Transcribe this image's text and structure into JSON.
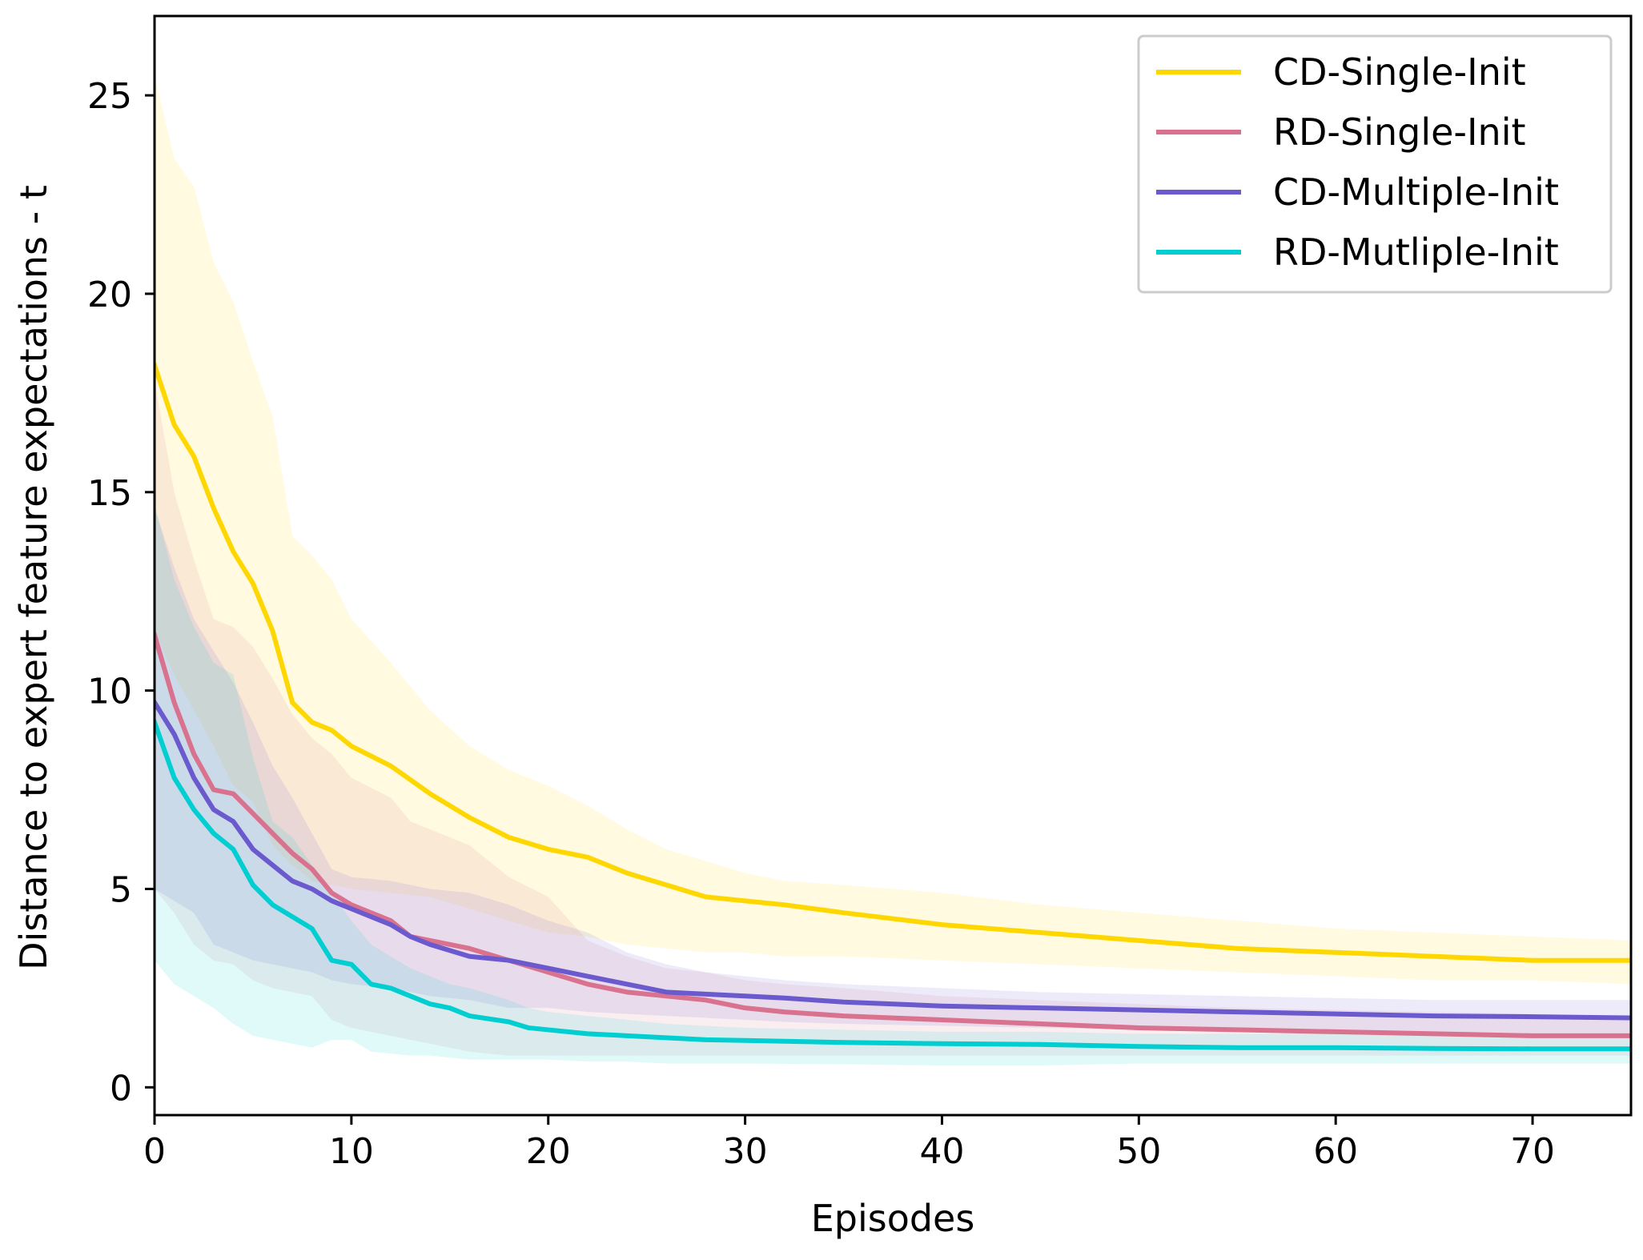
{
  "chart_data": {
    "type": "line",
    "title": "",
    "xlabel": "Episodes",
    "ylabel": "Distance to expert feature expectations - t",
    "xlim": [
      0,
      75
    ],
    "ylim": [
      -0.7,
      27
    ],
    "xticks": [
      0,
      10,
      20,
      30,
      40,
      50,
      60,
      70
    ],
    "yticks": [
      0,
      5,
      10,
      15,
      20,
      25
    ],
    "legend_position": "top-right",
    "grid": false,
    "series": [
      {
        "name": "CD-Single-Init",
        "color": "#FFD700",
        "x": [
          0,
          1,
          2,
          3,
          4,
          5,
          6,
          7,
          8,
          9,
          10,
          12,
          14,
          16,
          18,
          20,
          22,
          24,
          26,
          28,
          30,
          32,
          35,
          40,
          45,
          50,
          55,
          60,
          65,
          70,
          75
        ],
        "values": [
          18.2,
          16.7,
          15.9,
          14.6,
          13.5,
          12.7,
          11.5,
          9.7,
          9.2,
          9.0,
          8.6,
          8.1,
          7.4,
          6.8,
          6.3,
          6.0,
          5.8,
          5.4,
          5.1,
          4.8,
          4.7,
          4.6,
          4.4,
          4.1,
          3.9,
          3.7,
          3.5,
          3.4,
          3.3,
          3.2,
          3.2
        ],
        "upper": [
          25.5,
          23.4,
          22.7,
          20.8,
          19.8,
          18.3,
          16.9,
          13.9,
          13.4,
          12.8,
          11.8,
          10.7,
          9.5,
          8.6,
          8.0,
          7.6,
          7.1,
          6.5,
          6.0,
          5.7,
          5.4,
          5.2,
          5.1,
          4.9,
          4.6,
          4.4,
          4.2,
          4.0,
          3.9,
          3.8,
          3.7
        ],
        "lower": [
          11.5,
          10.4,
          9.5,
          8.6,
          7.6,
          7.2,
          6.1,
          5.6,
          5.2,
          5.1,
          5.0,
          4.9,
          4.8,
          4.5,
          4.2,
          3.9,
          3.8,
          3.6,
          3.5,
          3.4,
          3.4,
          3.3,
          3.3,
          3.2,
          3.1,
          3.0,
          2.9,
          2.8,
          2.7,
          2.7,
          2.6
        ]
      },
      {
        "name": "RD-Single-Init",
        "color": "#D9728F",
        "x": [
          0,
          1,
          2,
          3,
          4,
          5,
          6,
          7,
          8,
          9,
          10,
          12,
          13,
          14,
          16,
          18,
          20,
          22,
          24,
          26,
          28,
          30,
          32,
          35,
          40,
          45,
          50,
          55,
          60,
          65,
          70,
          75
        ],
        "values": [
          11.4,
          9.7,
          8.4,
          7.5,
          7.4,
          6.9,
          6.4,
          5.9,
          5.5,
          4.9,
          4.6,
          4.2,
          3.8,
          3.7,
          3.5,
          3.2,
          2.9,
          2.6,
          2.4,
          2.3,
          2.2,
          2.0,
          1.9,
          1.8,
          1.7,
          1.6,
          1.5,
          1.45,
          1.4,
          1.35,
          1.3,
          1.3
        ],
        "upper": [
          17.8,
          15.0,
          13.3,
          11.8,
          11.6,
          11.1,
          10.3,
          9.4,
          8.8,
          8.4,
          7.8,
          7.3,
          6.7,
          6.5,
          6.1,
          5.3,
          4.8,
          3.7,
          3.3,
          3.0,
          2.9,
          2.7,
          2.6,
          2.5,
          2.3,
          2.2,
          2.1,
          2.0,
          1.95,
          1.9,
          1.85,
          1.8
        ],
        "lower": [
          5.0,
          4.4,
          3.6,
          3.2,
          3.1,
          2.7,
          2.5,
          2.4,
          2.3,
          1.7,
          1.5,
          1.3,
          1.2,
          1.1,
          0.9,
          0.8,
          0.8,
          0.8,
          0.8,
          0.8,
          0.8,
          0.8,
          0.8,
          0.8,
          0.8,
          0.8,
          0.8,
          0.8,
          0.8,
          0.8,
          0.8,
          0.8
        ]
      },
      {
        "name": "CD-Multiple-Init",
        "color": "#6A5ACD",
        "x": [
          0,
          1,
          2,
          3,
          4,
          5,
          6,
          7,
          8,
          9,
          10,
          12,
          13,
          14,
          16,
          18,
          20,
          22,
          24,
          26,
          28,
          30,
          32,
          35,
          40,
          45,
          50,
          55,
          60,
          65,
          70,
          75
        ],
        "values": [
          9.7,
          8.9,
          7.8,
          7.0,
          6.7,
          6.0,
          5.6,
          5.2,
          5.0,
          4.7,
          4.5,
          4.1,
          3.8,
          3.6,
          3.3,
          3.2,
          3.0,
          2.8,
          2.6,
          2.4,
          2.35,
          2.3,
          2.25,
          2.15,
          2.05,
          2.0,
          1.95,
          1.9,
          1.85,
          1.8,
          1.78,
          1.75
        ],
        "upper": [
          14.6,
          13.1,
          11.8,
          11.0,
          10.2,
          9.2,
          8.1,
          7.3,
          6.4,
          5.5,
          5.3,
          5.2,
          5.1,
          5.0,
          4.9,
          4.6,
          4.2,
          3.9,
          3.4,
          3.1,
          2.9,
          2.8,
          2.7,
          2.6,
          2.5,
          2.4,
          2.35,
          2.3,
          2.25,
          2.2,
          2.2,
          2.2
        ],
        "lower": [
          5.0,
          4.7,
          4.4,
          3.6,
          3.4,
          3.2,
          3.1,
          3.0,
          2.9,
          2.7,
          2.6,
          2.5,
          2.4,
          2.3,
          2.2,
          2.0,
          2.0,
          1.9,
          1.85,
          1.8,
          1.75,
          1.7,
          1.65,
          1.6,
          1.55,
          1.5,
          1.45,
          1.4,
          1.35,
          1.3,
          1.3,
          1.3
        ]
      },
      {
        "name": "RD-Mutliple-Init",
        "color": "#00CED1",
        "x": [
          0,
          1,
          2,
          3,
          4,
          5,
          6,
          7,
          8,
          9,
          10,
          11,
          12,
          13,
          14,
          15,
          16,
          18,
          19,
          20,
          22,
          24,
          26,
          28,
          30,
          35,
          40,
          45,
          50,
          55,
          60,
          65,
          70,
          75
        ],
        "values": [
          9.2,
          7.8,
          7.0,
          6.4,
          6.0,
          5.1,
          4.6,
          4.3,
          4.0,
          3.2,
          3.1,
          2.6,
          2.5,
          2.3,
          2.1,
          2.0,
          1.8,
          1.65,
          1.5,
          1.45,
          1.35,
          1.3,
          1.25,
          1.2,
          1.18,
          1.13,
          1.1,
          1.08,
          1.03,
          1.0,
          1.0,
          0.98,
          0.97,
          0.97
        ],
        "upper": [
          14.7,
          12.8,
          11.6,
          10.7,
          10.4,
          8.3,
          6.7,
          6.3,
          5.6,
          4.9,
          4.2,
          3.6,
          3.3,
          3.0,
          2.8,
          2.6,
          2.5,
          2.2,
          2.0,
          1.9,
          1.8,
          1.7,
          1.6,
          1.55,
          1.5,
          1.45,
          1.4,
          1.4,
          1.35,
          1.35,
          1.35,
          1.3,
          1.3,
          1.3
        ],
        "lower": [
          3.2,
          2.6,
          2.3,
          2.0,
          1.6,
          1.3,
          1.2,
          1.1,
          1.0,
          1.2,
          1.2,
          0.9,
          0.85,
          0.8,
          0.8,
          0.75,
          0.7,
          0.7,
          0.7,
          0.7,
          0.65,
          0.65,
          0.6,
          0.6,
          0.6,
          0.58,
          0.55,
          0.55,
          0.6,
          0.6,
          0.6,
          0.6,
          0.6,
          0.6
        ]
      }
    ]
  }
}
